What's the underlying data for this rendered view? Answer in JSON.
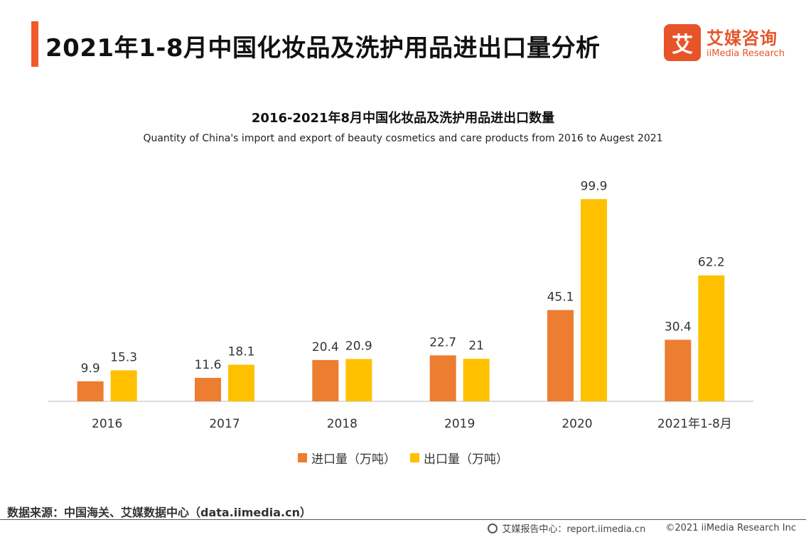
{
  "header": {
    "title": "2021年1-8月中国化妆品及洗护用品进出口量分析",
    "accent_color": "#F05A28"
  },
  "logo": {
    "glyph": "艾",
    "cn": "艾媒咨询",
    "en": "iiMedia Research",
    "color": "#E8542A"
  },
  "chart_data": {
    "type": "bar",
    "title": "2016-2021年8月中国化妆品及洗护用品进出口数量",
    "subtitle": "Quantity of China's import and export of beauty cosmetics and care products from 2016 to Augest 2021",
    "categories": [
      "2016",
      "2017",
      "2018",
      "2019",
      "2020",
      "2021年1-8月"
    ],
    "series": [
      {
        "name": "进口量（万吨）",
        "values": [
          9.9,
          11.6,
          20.4,
          22.7,
          45.1,
          30.4
        ],
        "color": "#ED7D31"
      },
      {
        "name": "出口量（万吨）",
        "values": [
          15.3,
          18.1,
          20.9,
          21,
          99.9,
          62.2
        ],
        "color": "#FFC000"
      }
    ],
    "ylim": [
      0,
      100
    ],
    "xlabel": "",
    "ylabel": "",
    "grid": false,
    "legend": "bottom-center"
  },
  "footer": {
    "source": "数据来源：中国海关、艾媒数据中心（data.iimedia.cn）",
    "report": "艾媒报告中心：report.iimedia.cn",
    "copyright": "©2021  iiMedia Research  Inc"
  }
}
